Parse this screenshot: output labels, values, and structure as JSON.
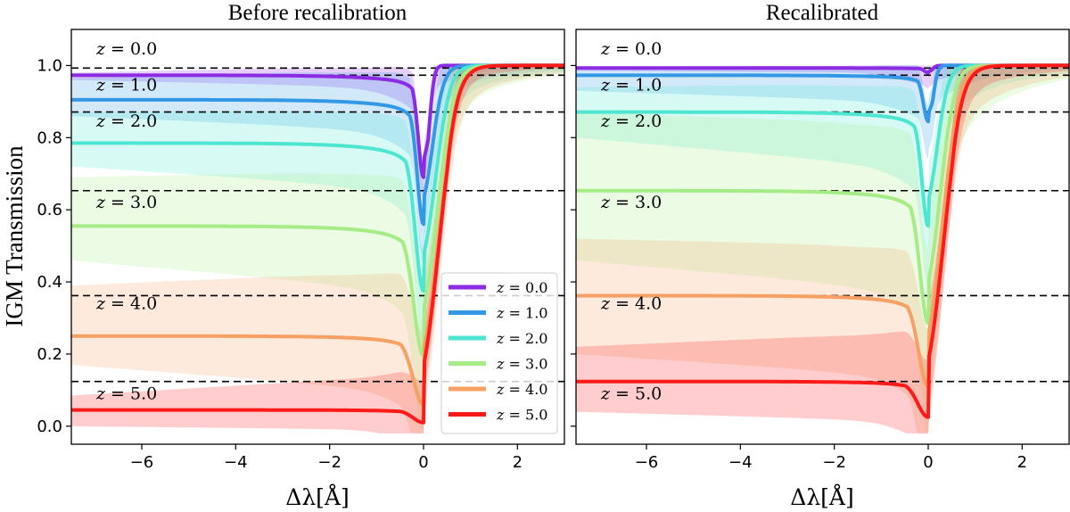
{
  "chart_data": [
    {
      "type": "line",
      "title": "Before recalibration",
      "xlabel": "Δλ[Å]",
      "ylabel": "IGM Transmission",
      "xlim": [
        -7.5,
        3.0
      ],
      "ylim": [
        -0.05,
        1.1
      ],
      "xticks": [
        -6,
        -4,
        -2,
        0,
        2
      ],
      "xtick_labels": [
        "−6",
        "−4",
        "−2",
        "0",
        "2"
      ],
      "yticks": [
        0.0,
        0.2,
        0.4,
        0.6,
        0.8,
        1.0
      ],
      "ytick_labels": [
        "0.0",
        "0.2",
        "0.4",
        "0.6",
        "0.8",
        "1.0"
      ],
      "hlines": [
        0.993,
        0.973,
        0.871,
        0.653,
        0.362,
        0.124
      ],
      "legend": "lower-right",
      "series": [
        {
          "name": "z = 0.0",
          "color": "#8b2be2",
          "plateau": 0.973,
          "dip_min": 0.69,
          "dip_width": 0.11,
          "upper": [
            0.98,
            1.0
          ],
          "lower": [
            0.96,
            0.94
          ]
        },
        {
          "name": "z = 1.0",
          "color": "#3399e6",
          "plateau": 0.905,
          "dip_min": 0.56,
          "dip_width": 0.13,
          "upper": [
            0.965,
            0.99
          ],
          "lower": [
            0.86,
            0.82
          ]
        },
        {
          "name": "z = 2.0",
          "color": "#4ee6d0",
          "plateau": 0.785,
          "dip_min": 0.375,
          "dip_width": 0.17,
          "upper": [
            0.87,
            0.88
          ],
          "lower": [
            0.72,
            0.66
          ]
        },
        {
          "name": "z = 3.0",
          "color": "#a6ec86",
          "plateau": 0.555,
          "dip_min": 0.195,
          "dip_width": 0.2,
          "upper": [
            0.69,
            0.71
          ],
          "lower": [
            0.46,
            0.38
          ]
        },
        {
          "name": "z = 4.0",
          "color": "#f6a064",
          "plateau": 0.25,
          "dip_min": 0.06,
          "dip_width": 0.22,
          "upper": [
            0.39,
            0.43
          ],
          "lower": [
            0.17,
            0.1
          ]
        },
        {
          "name": "z = 5.0",
          "color": "#ff1a1a",
          "plateau": 0.045,
          "dip_min": 0.01,
          "dip_width": 0.22,
          "upper": [
            0.085,
            0.14
          ],
          "lower": [
            0.0,
            -0.01
          ]
        }
      ]
    },
    {
      "type": "line",
      "title": "Recalibrated",
      "xlabel": "Δλ[Å]",
      "ylabel": "",
      "xlim": [
        -7.5,
        3.0
      ],
      "ylim": [
        -0.05,
        1.1
      ],
      "xticks": [
        -6,
        -4,
        -2,
        0,
        2
      ],
      "xtick_labels": [
        "−6",
        "−4",
        "−2",
        "0",
        "2"
      ],
      "yticks": [
        0.0,
        0.2,
        0.4,
        0.6,
        0.8,
        1.0
      ],
      "hlines": [
        0.993,
        0.973,
        0.871,
        0.653,
        0.362,
        0.124
      ],
      "series": [
        {
          "name": "z = 0.0",
          "color": "#8b2be2",
          "plateau": 0.993,
          "dip_min": 0.98,
          "dip_width": 0.08,
          "upper": [
            0.998,
            1.0
          ],
          "lower": [
            0.985,
            0.98
          ]
        },
        {
          "name": "z = 1.0",
          "color": "#3399e6",
          "plateau": 0.973,
          "dip_min": 0.845,
          "dip_width": 0.1,
          "upper": [
            0.99,
            1.0
          ],
          "lower": [
            0.93,
            0.9
          ]
        },
        {
          "name": "z = 2.0",
          "color": "#4ee6d0",
          "plateau": 0.871,
          "dip_min": 0.555,
          "dip_width": 0.13,
          "upper": [
            0.94,
            0.95
          ],
          "lower": [
            0.8,
            0.72
          ]
        },
        {
          "name": "z = 3.0",
          "color": "#a6ec86",
          "plateau": 0.653,
          "dip_min": 0.285,
          "dip_width": 0.17,
          "upper": [
            0.87,
            0.84
          ],
          "lower": [
            0.46,
            0.38
          ]
        },
        {
          "name": "z = 4.0",
          "color": "#f6a064",
          "plateau": 0.362,
          "dip_min": 0.11,
          "dip_width": 0.2,
          "upper": [
            0.52,
            0.5
          ],
          "lower": [
            0.2,
            0.14
          ]
        },
        {
          "name": "z = 5.0",
          "color": "#ff1a1a",
          "plateau": 0.124,
          "dip_min": 0.025,
          "dip_width": 0.22,
          "upper": [
            0.22,
            0.26
          ],
          "lower": [
            0.04,
            0.015
          ]
        }
      ]
    }
  ],
  "zlabels": [
    "0.0",
    "1.0",
    "2.0",
    "3.0",
    "4.0",
    "5.0"
  ],
  "z_symbol": "z",
  "z_eq": " = ",
  "legend_labels": [
    "0.0",
    "1.0",
    "2.0",
    "3.0",
    "4.0",
    "5.0"
  ]
}
